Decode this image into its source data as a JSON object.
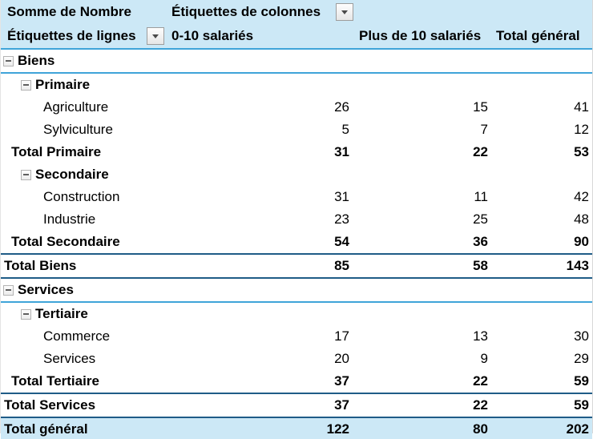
{
  "header": {
    "measure": "Somme de Nombre",
    "column_labels": "Étiquettes de colonnes",
    "row_labels": "Étiquettes de lignes",
    "columns": [
      "0-10 salariés",
      "Plus de 10 salariés",
      "Total général"
    ]
  },
  "rows": [
    {
      "label": "Biens",
      "type": "group0",
      "values": [
        "",
        "",
        ""
      ]
    },
    {
      "label": "Primaire",
      "type": "group1",
      "values": [
        "",
        "",
        ""
      ]
    },
    {
      "label": "Agriculture",
      "type": "leaf",
      "values": [
        "26",
        "15",
        "41"
      ]
    },
    {
      "label": "Sylviculture",
      "type": "leaf",
      "values": [
        "5",
        "7",
        "12"
      ]
    },
    {
      "label": "Total Primaire",
      "type": "subtotal",
      "values": [
        "31",
        "22",
        "53"
      ]
    },
    {
      "label": "Secondaire",
      "type": "group1",
      "values": [
        "",
        "",
        ""
      ]
    },
    {
      "label": "Construction",
      "type": "leaf",
      "values": [
        "31",
        "11",
        "42"
      ]
    },
    {
      "label": "Industrie",
      "type": "leaf",
      "values": [
        "23",
        "25",
        "48"
      ]
    },
    {
      "label": "Total Secondaire",
      "type": "subtotal",
      "values": [
        "54",
        "36",
        "90"
      ]
    },
    {
      "label": "Total Biens",
      "type": "total0",
      "values": [
        "85",
        "58",
        "143"
      ]
    },
    {
      "label": "Services",
      "type": "group0",
      "values": [
        "",
        "",
        ""
      ]
    },
    {
      "label": "Tertiaire",
      "type": "group1",
      "values": [
        "",
        "",
        ""
      ]
    },
    {
      "label": "Commerce",
      "type": "leaf",
      "values": [
        "17",
        "13",
        "30"
      ]
    },
    {
      "label": "Services",
      "type": "leaf",
      "values": [
        "20",
        "9",
        "29"
      ]
    },
    {
      "label": "Total Tertiaire",
      "type": "subtotal",
      "values": [
        "37",
        "22",
        "59"
      ]
    },
    {
      "label": "Total Services",
      "type": "total0",
      "values": [
        "37",
        "22",
        "59"
      ]
    },
    {
      "label": "Total général",
      "type": "grand",
      "values": [
        "122",
        "80",
        "202"
      ]
    }
  ],
  "icons": {
    "dropdown": "filter-dropdown-arrow",
    "collapse": "collapse-minus"
  },
  "colors": {
    "header_bg": "#cce8f6",
    "grand_total_bg": "#cce8f6",
    "light_blue_border": "#3fa4d9",
    "dark_blue_border": "#1f5c87"
  }
}
